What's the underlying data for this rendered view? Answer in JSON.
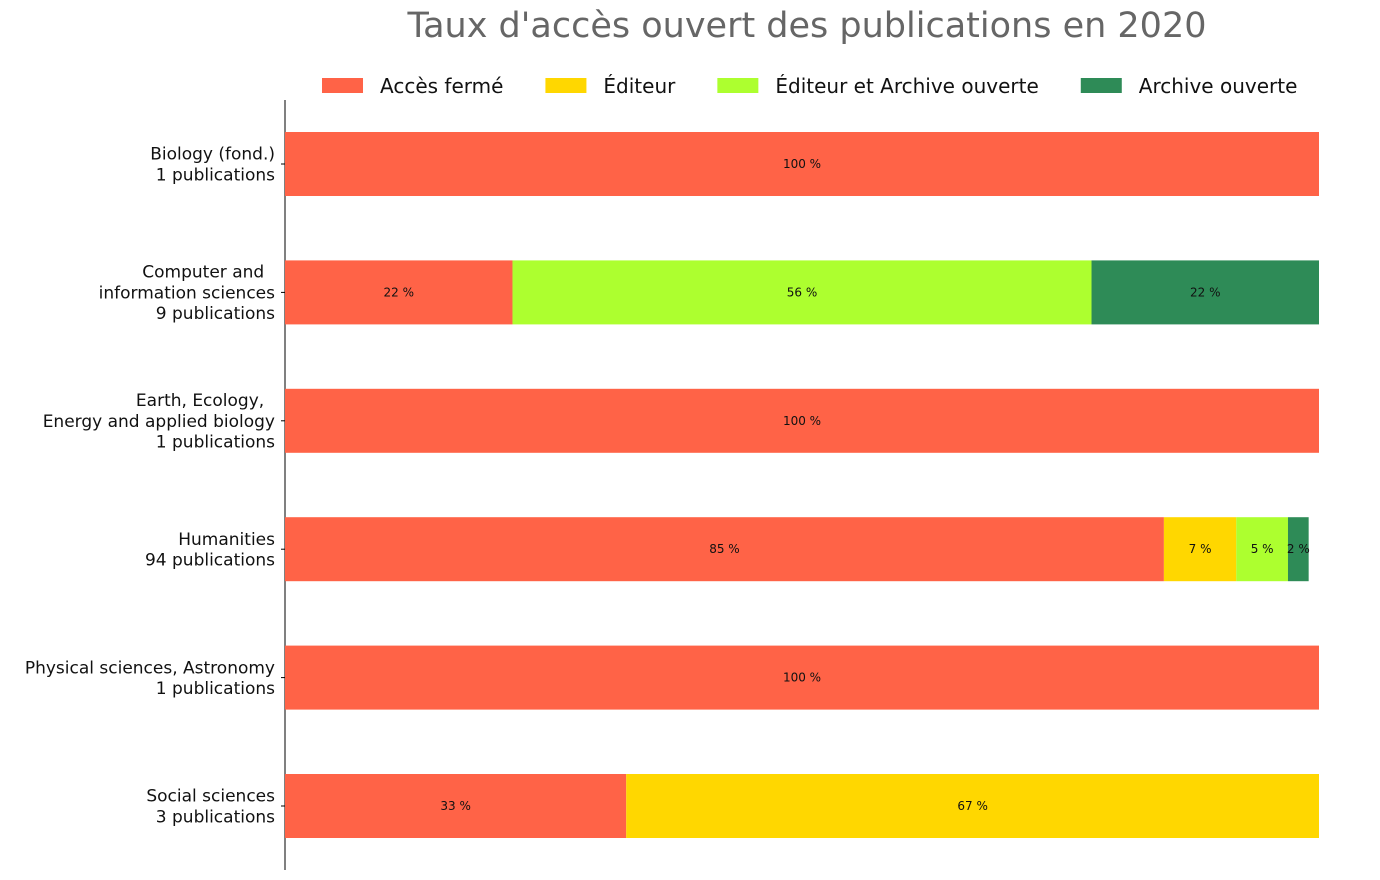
{
  "chart_data": {
    "type": "bar",
    "orientation": "horizontal",
    "stacked": true,
    "title": "Taux d'accès ouvert des publications en 2020",
    "xlabel": "",
    "ylabel": "",
    "xlim": [
      0,
      100
    ],
    "grid": false,
    "legend_position": "top",
    "categories": [
      [
        "Biology (fond.)",
        "1 publications"
      ],
      [
        "Computer and  ",
        "information sciences",
        "9 publications"
      ],
      [
        "Earth, Ecology,  ",
        "Energy and applied biology",
        "1 publications"
      ],
      [
        "Humanities",
        "94 publications"
      ],
      [
        "Physical sciences, Astronomy",
        "1 publications"
      ],
      [
        "Social sciences",
        "3 publications"
      ]
    ],
    "series": [
      {
        "name": "Accès fermé",
        "color": "#FF6347",
        "values": [
          100,
          22,
          100,
          85,
          100,
          33
        ],
        "labels": [
          "100 %",
          "22 %",
          "100 %",
          "85 %",
          "100 %",
          "33 %"
        ]
      },
      {
        "name": "Éditeur",
        "color": "#FFD700",
        "values": [
          0,
          0,
          0,
          7,
          0,
          67
        ],
        "labels": [
          "",
          "",
          "",
          "7 %",
          "",
          "67 %"
        ]
      },
      {
        "name": "Éditeur et Archive ouverte",
        "color": "#ADFF2F",
        "values": [
          0,
          56,
          0,
          5,
          0,
          0
        ],
        "labels": [
          "",
          "56 %",
          "",
          "5 %",
          "",
          ""
        ]
      },
      {
        "name": "Archive ouverte",
        "color": "#2E8B57",
        "values": [
          0,
          22,
          0,
          2,
          0,
          0
        ],
        "labels": [
          "",
          "22 %",
          "",
          "2 %",
          "",
          ""
        ]
      }
    ]
  }
}
